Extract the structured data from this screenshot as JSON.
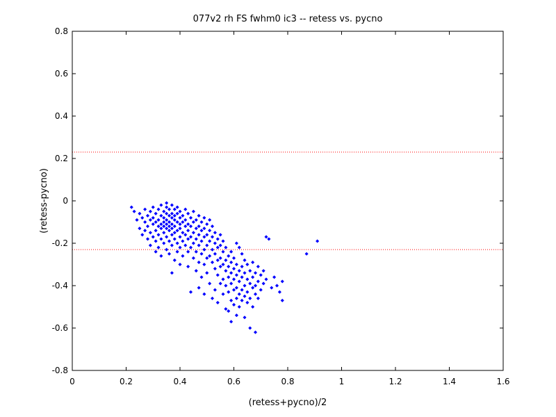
{
  "chart_data": {
    "type": "scatter",
    "title": "077v2 rh FS fwhm0 ic3 -- retess vs. pycno",
    "xlabel": "(retess+pycno)/2",
    "ylabel": "(retess-pycno)",
    "xlim": [
      0,
      1.6
    ],
    "ylim": [
      -0.8,
      0.8
    ],
    "xticks": [
      "0",
      "0.2",
      "0.4",
      "0.6",
      "0.8",
      "1",
      "1.2",
      "1.4",
      "1.6"
    ],
    "yticks": [
      "-0.8",
      "-0.6",
      "-0.4",
      "-0.2",
      "0",
      "0.2",
      "0.4",
      "0.6",
      "0.8"
    ],
    "grid": false,
    "marker_color": "#0000ff",
    "reference_line_color": "#ff0000",
    "reference_lines_y": [
      0.23,
      -0.23
    ],
    "series": [
      {
        "points": [
          [
            0.22,
            -0.03
          ],
          [
            0.23,
            -0.05
          ],
          [
            0.24,
            -0.09
          ],
          [
            0.25,
            -0.06
          ],
          [
            0.25,
            -0.13
          ],
          [
            0.26,
            -0.08
          ],
          [
            0.26,
            -0.16
          ],
          [
            0.27,
            -0.04
          ],
          [
            0.27,
            -0.1
          ],
          [
            0.27,
            -0.14
          ],
          [
            0.28,
            -0.07
          ],
          [
            0.28,
            -0.12
          ],
          [
            0.28,
            -0.18
          ],
          [
            0.29,
            -0.05
          ],
          [
            0.29,
            -0.09
          ],
          [
            0.29,
            -0.15
          ],
          [
            0.29,
            -0.21
          ],
          [
            0.3,
            -0.03
          ],
          [
            0.3,
            -0.08
          ],
          [
            0.3,
            -0.11
          ],
          [
            0.3,
            -0.17
          ],
          [
            0.31,
            -0.06
          ],
          [
            0.31,
            -0.1
          ],
          [
            0.31,
            -0.14
          ],
          [
            0.31,
            -0.19
          ],
          [
            0.31,
            -0.24
          ],
          [
            0.32,
            -0.04
          ],
          [
            0.32,
            -0.09
          ],
          [
            0.32,
            -0.12
          ],
          [
            0.32,
            -0.16
          ],
          [
            0.32,
            -0.22
          ],
          [
            0.33,
            -0.02
          ],
          [
            0.33,
            -0.07
          ],
          [
            0.33,
            -0.11
          ],
          [
            0.33,
            -0.13
          ],
          [
            0.33,
            -0.18
          ],
          [
            0.33,
            -0.26
          ],
          [
            0.34,
            -0.05
          ],
          [
            0.34,
            -0.08
          ],
          [
            0.34,
            -0.1
          ],
          [
            0.34,
            -0.12
          ],
          [
            0.34,
            -0.15
          ],
          [
            0.34,
            -0.2
          ],
          [
            0.35,
            -0.03
          ],
          [
            0.35,
            -0.06
          ],
          [
            0.35,
            -0.09
          ],
          [
            0.35,
            -0.11
          ],
          [
            0.35,
            -0.13
          ],
          [
            0.35,
            -0.17
          ],
          [
            0.35,
            -0.23
          ],
          [
            0.35,
            -0.01
          ],
          [
            0.36,
            -0.04
          ],
          [
            0.36,
            -0.07
          ],
          [
            0.36,
            -0.1
          ],
          [
            0.36,
            -0.12
          ],
          [
            0.36,
            -0.14
          ],
          [
            0.36,
            -0.19
          ],
          [
            0.36,
            -0.25
          ],
          [
            0.37,
            -0.02
          ],
          [
            0.37,
            -0.06
          ],
          [
            0.37,
            -0.08
          ],
          [
            0.37,
            -0.11
          ],
          [
            0.37,
            -0.13
          ],
          [
            0.37,
            -0.16
          ],
          [
            0.37,
            -0.21
          ],
          [
            0.37,
            -0.34
          ],
          [
            0.38,
            -0.04
          ],
          [
            0.38,
            -0.07
          ],
          [
            0.38,
            -0.09
          ],
          [
            0.38,
            -0.12
          ],
          [
            0.38,
            -0.15
          ],
          [
            0.38,
            -0.18
          ],
          [
            0.38,
            -0.28
          ],
          [
            0.39,
            -0.03
          ],
          [
            0.39,
            -0.06
          ],
          [
            0.39,
            -0.1
          ],
          [
            0.39,
            -0.14
          ],
          [
            0.39,
            -0.2
          ],
          [
            0.39,
            -0.24
          ],
          [
            0.4,
            -0.05
          ],
          [
            0.4,
            -0.08
          ],
          [
            0.4,
            -0.11
          ],
          [
            0.4,
            -0.13
          ],
          [
            0.4,
            -0.17
          ],
          [
            0.4,
            -0.22
          ],
          [
            0.4,
            -0.3
          ],
          [
            0.41,
            -0.07
          ],
          [
            0.41,
            -0.1
          ],
          [
            0.41,
            -0.15
          ],
          [
            0.41,
            -0.19
          ],
          [
            0.41,
            -0.26
          ],
          [
            0.42,
            -0.04
          ],
          [
            0.42,
            -0.09
          ],
          [
            0.42,
            -0.12
          ],
          [
            0.42,
            -0.16
          ],
          [
            0.42,
            -0.21
          ],
          [
            0.43,
            -0.06
          ],
          [
            0.43,
            -0.11
          ],
          [
            0.43,
            -0.14
          ],
          [
            0.43,
            -0.18
          ],
          [
            0.43,
            -0.24
          ],
          [
            0.43,
            -0.31
          ],
          [
            0.44,
            -0.08
          ],
          [
            0.44,
            -0.12
          ],
          [
            0.44,
            -0.17
          ],
          [
            0.44,
            -0.22
          ],
          [
            0.44,
            -0.43
          ],
          [
            0.45,
            -0.05
          ],
          [
            0.45,
            -0.1
          ],
          [
            0.45,
            -0.15
          ],
          [
            0.45,
            -0.2
          ],
          [
            0.45,
            -0.27
          ],
          [
            0.46,
            -0.09
          ],
          [
            0.46,
            -0.13
          ],
          [
            0.46,
            -0.18
          ],
          [
            0.46,
            -0.24
          ],
          [
            0.46,
            -0.33
          ],
          [
            0.47,
            -0.07
          ],
          [
            0.47,
            -0.12
          ],
          [
            0.47,
            -0.16
          ],
          [
            0.47,
            -0.21
          ],
          [
            0.47,
            -0.29
          ],
          [
            0.47,
            -0.41
          ],
          [
            0.48,
            -0.1
          ],
          [
            0.48,
            -0.14
          ],
          [
            0.48,
            -0.19
          ],
          [
            0.48,
            -0.25
          ],
          [
            0.48,
            -0.36
          ],
          [
            0.49,
            -0.08
          ],
          [
            0.49,
            -0.13
          ],
          [
            0.49,
            -0.17
          ],
          [
            0.49,
            -0.23
          ],
          [
            0.49,
            -0.3
          ],
          [
            0.49,
            -0.44
          ],
          [
            0.5,
            -0.11
          ],
          [
            0.5,
            -0.16
          ],
          [
            0.5,
            -0.21
          ],
          [
            0.5,
            -0.27
          ],
          [
            0.5,
            -0.34
          ],
          [
            0.51,
            -0.09
          ],
          [
            0.51,
            -0.14
          ],
          [
            0.51,
            -0.19
          ],
          [
            0.51,
            -0.26
          ],
          [
            0.51,
            -0.39
          ],
          [
            0.52,
            -0.12
          ],
          [
            0.52,
            -0.17
          ],
          [
            0.52,
            -0.23
          ],
          [
            0.52,
            -0.29
          ],
          [
            0.52,
            -0.46
          ],
          [
            0.53,
            -0.15
          ],
          [
            0.53,
            -0.2
          ],
          [
            0.53,
            -0.25
          ],
          [
            0.53,
            -0.32
          ],
          [
            0.53,
            -0.42
          ],
          [
            0.54,
            -0.18
          ],
          [
            0.54,
            -0.22
          ],
          [
            0.54,
            -0.28
          ],
          [
            0.54,
            -0.35
          ],
          [
            0.54,
            -0.48
          ],
          [
            0.55,
            -0.16
          ],
          [
            0.55,
            -0.21
          ],
          [
            0.55,
            -0.27
          ],
          [
            0.55,
            -0.31
          ],
          [
            0.55,
            -0.39
          ],
          [
            0.56,
            -0.19
          ],
          [
            0.56,
            -0.24
          ],
          [
            0.56,
            -0.3
          ],
          [
            0.56,
            -0.37
          ],
          [
            0.56,
            -0.44
          ],
          [
            0.57,
            -0.22
          ],
          [
            0.57,
            -0.28
          ],
          [
            0.57,
            -0.33
          ],
          [
            0.57,
            -0.4
          ],
          [
            0.57,
            -0.51
          ],
          [
            0.58,
            -0.26
          ],
          [
            0.58,
            -0.31
          ],
          [
            0.58,
            -0.36
          ],
          [
            0.58,
            -0.43
          ],
          [
            0.58,
            -0.52
          ],
          [
            0.59,
            -0.24
          ],
          [
            0.59,
            -0.29
          ],
          [
            0.59,
            -0.34
          ],
          [
            0.59,
            -0.39
          ],
          [
            0.59,
            -0.47
          ],
          [
            0.59,
            -0.57
          ],
          [
            0.6,
            -0.27
          ],
          [
            0.6,
            -0.32
          ],
          [
            0.6,
            -0.37
          ],
          [
            0.6,
            -0.42
          ],
          [
            0.6,
            -0.49
          ],
          [
            0.61,
            -0.2
          ],
          [
            0.61,
            -0.3
          ],
          [
            0.61,
            -0.35
          ],
          [
            0.61,
            -0.41
          ],
          [
            0.61,
            -0.46
          ],
          [
            0.61,
            -0.54
          ],
          [
            0.62,
            -0.22
          ],
          [
            0.62,
            -0.33
          ],
          [
            0.62,
            -0.38
          ],
          [
            0.62,
            -0.44
          ],
          [
            0.62,
            -0.5
          ],
          [
            0.63,
            -0.25
          ],
          [
            0.63,
            -0.31
          ],
          [
            0.63,
            -0.36
          ],
          [
            0.63,
            -0.42
          ],
          [
            0.63,
            -0.47
          ],
          [
            0.64,
            -0.28
          ],
          [
            0.64,
            -0.34
          ],
          [
            0.64,
            -0.4
          ],
          [
            0.64,
            -0.45
          ],
          [
            0.64,
            -0.55
          ],
          [
            0.65,
            -0.3
          ],
          [
            0.65,
            -0.37
          ],
          [
            0.65,
            -0.43
          ],
          [
            0.65,
            -0.48
          ],
          [
            0.66,
            -0.33
          ],
          [
            0.66,
            -0.39
          ],
          [
            0.66,
            -0.46
          ],
          [
            0.66,
            -0.6
          ],
          [
            0.67,
            -0.29
          ],
          [
            0.67,
            -0.36
          ],
          [
            0.67,
            -0.41
          ],
          [
            0.67,
            -0.5
          ],
          [
            0.68,
            -0.34
          ],
          [
            0.68,
            -0.4
          ],
          [
            0.68,
            -0.44
          ],
          [
            0.68,
            -0.62
          ],
          [
            0.69,
            -0.31
          ],
          [
            0.69,
            -0.38
          ],
          [
            0.69,
            -0.46
          ],
          [
            0.7,
            -0.35
          ],
          [
            0.7,
            -0.42
          ],
          [
            0.71,
            -0.33
          ],
          [
            0.71,
            -0.39
          ],
          [
            0.72,
            -0.37
          ],
          [
            0.72,
            -0.17
          ],
          [
            0.73,
            -0.18
          ],
          [
            0.74,
            -0.41
          ],
          [
            0.75,
            -0.36
          ],
          [
            0.76,
            -0.4
          ],
          [
            0.77,
            -0.43
          ],
          [
            0.78,
            -0.38
          ],
          [
            0.78,
            -0.47
          ],
          [
            0.87,
            -0.25
          ],
          [
            0.91,
            -0.19
          ]
        ]
      }
    ]
  }
}
